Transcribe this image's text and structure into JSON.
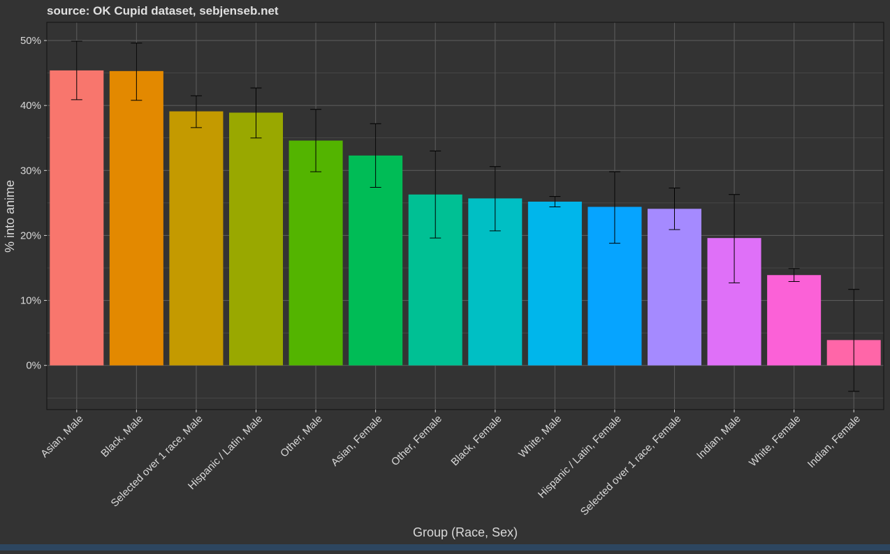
{
  "chart_data": {
    "type": "bar",
    "title": "source: OK Cupid dataset, sebjenseb.net",
    "xlabel": "Group (Race, Sex)",
    "ylabel": "% into anime",
    "ylim": [
      -6.8,
      52.8
    ],
    "yticks": [
      0,
      10,
      20,
      30,
      40,
      50
    ],
    "ytick_labels": [
      "0%",
      "10%",
      "20%",
      "30%",
      "40%",
      "50%"
    ],
    "grid": true,
    "legend": "none",
    "categories": [
      "Asian, Male",
      "Black, Male",
      "Selected over 1 race, Male",
      "Hispanic / Latin, Male",
      "Other, Male",
      "Asian, Female",
      "Other, Female",
      "Black, Female",
      "White, Male",
      "Hispanic / Latin, Female",
      "Selected over 1 race, Female",
      "Indian, Male",
      "White, Female",
      "Indian, Female"
    ],
    "values": [
      45.4,
      45.3,
      39.1,
      38.9,
      34.6,
      32.3,
      26.3,
      25.7,
      25.2,
      24.4,
      24.1,
      19.6,
      13.9,
      3.9
    ],
    "error_low": [
      40.9,
      40.8,
      36.6,
      35.0,
      29.8,
      27.4,
      19.6,
      20.7,
      24.4,
      18.8,
      20.9,
      12.7,
      12.9,
      -4.0
    ],
    "error_high": [
      49.9,
      49.6,
      41.5,
      42.7,
      39.4,
      37.2,
      33.0,
      30.6,
      26.0,
      29.8,
      27.3,
      26.3,
      14.9,
      11.7
    ],
    "colors": [
      "#f8766d",
      "#e38900",
      "#c49a00",
      "#99a800",
      "#53b400",
      "#00bc56",
      "#00c094",
      "#00bfc4",
      "#00b6eb",
      "#06a4ff",
      "#a58aff",
      "#df70f8",
      "#fb61d7",
      "#ff66a8"
    ],
    "panel_color": "#333333",
    "grid_color": "#5a5a5a",
    "text_color": "#d9d9d9",
    "error_bar_color": "#000000"
  }
}
